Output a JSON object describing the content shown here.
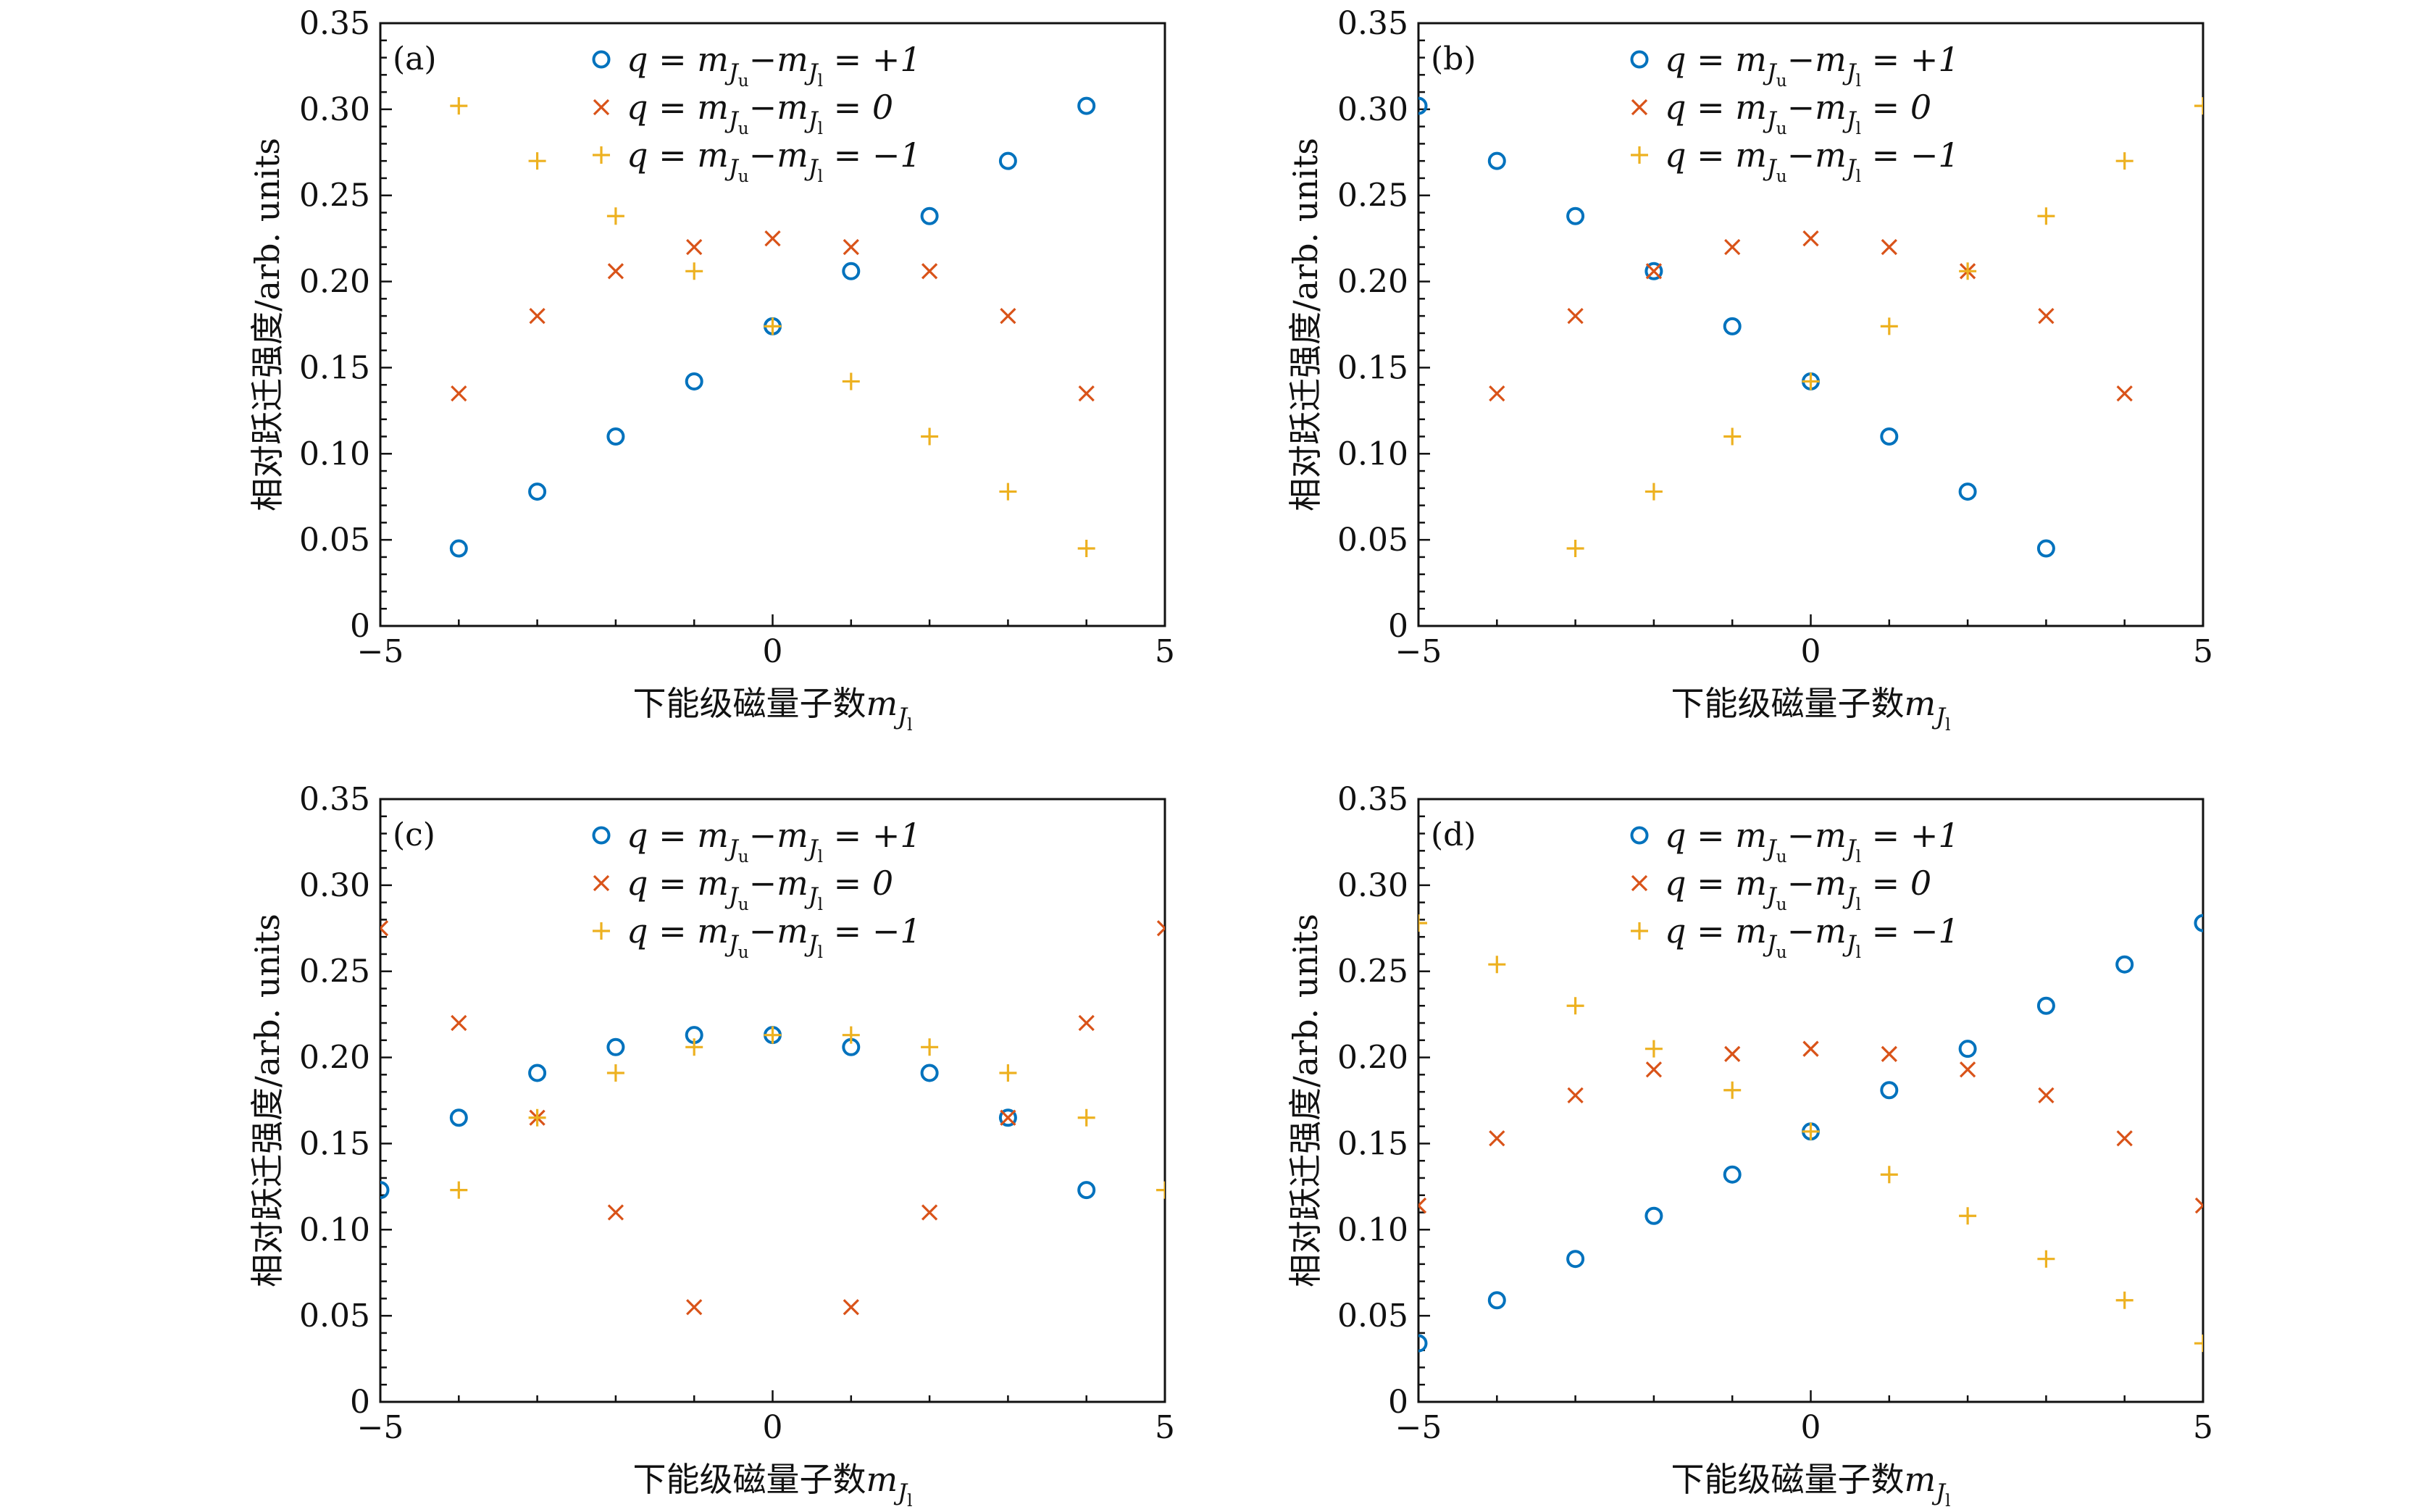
{
  "colors": {
    "plus1": "#0072BD",
    "zero": "#D95319",
    "minus1": "#EDB120",
    "axis": "#111111"
  },
  "axes": {
    "xlabel": "下能级磁量子数m_{J_l}",
    "ylabel": "相对跃迁强度/arb. units",
    "x_ticks": [
      "−5",
      "0",
      "5"
    ],
    "y_ticks": [
      "0",
      "0.05",
      "0.10",
      "0.15",
      "0.20",
      "0.25",
      "0.30",
      "0.35"
    ]
  },
  "legend": {
    "entries": [
      {
        "series": "q=+1",
        "marker": "circle",
        "text": "q = m_{J_u}−m_{J_l} = +1"
      },
      {
        "series": "q=0",
        "marker": "cross",
        "text": "q = m_{J_u}−m_{J_l} = 0"
      },
      {
        "series": "q=−1",
        "marker": "plus",
        "text": "q = m_{J_u}−m_{J_l} = −1"
      }
    ]
  },
  "chart_data": [
    {
      "type": "scatter",
      "panel_label": "(a)",
      "xlim": [
        -5,
        5
      ],
      "ylim": [
        0,
        0.35
      ],
      "xlabel": "下能级磁量子数m_{J_l}",
      "ylabel": "相对跃迁强度/arb. units",
      "series": [
        {
          "name": "q=+1",
          "marker": "circle",
          "x": [
            -4,
            -3,
            -2,
            -1,
            0,
            1,
            2,
            3,
            4
          ],
          "y": [
            0.045,
            0.078,
            0.11,
            0.142,
            0.174,
            0.206,
            0.238,
            0.27,
            0.302
          ]
        },
        {
          "name": "q=0",
          "marker": "cross",
          "x": [
            -4,
            -3,
            -2,
            -1,
            0,
            1,
            2,
            3,
            4
          ],
          "y": [
            0.135,
            0.18,
            0.206,
            0.22,
            0.225,
            0.22,
            0.206,
            0.18,
            0.135
          ]
        },
        {
          "name": "q=−1",
          "marker": "plus",
          "x": [
            -4,
            -3,
            -2,
            -1,
            0,
            1,
            2,
            3,
            4
          ],
          "y": [
            0.302,
            0.27,
            0.238,
            0.206,
            0.174,
            0.142,
            0.11,
            0.078,
            0.045
          ]
        }
      ]
    },
    {
      "type": "scatter",
      "panel_label": "(b)",
      "xlim": [
        -5,
        5
      ],
      "ylim": [
        0,
        0.35
      ],
      "xlabel": "下能级磁量子数m_{J_l}",
      "ylabel": "相对跃迁强度/arb. units",
      "series": [
        {
          "name": "q=+1",
          "marker": "circle",
          "x": [
            -5,
            -4,
            -3,
            -2,
            -1,
            0,
            1,
            2,
            3
          ],
          "y": [
            0.302,
            0.27,
            0.238,
            0.206,
            0.174,
            0.142,
            0.11,
            0.078,
            0.045
          ]
        },
        {
          "name": "q=0",
          "marker": "cross",
          "x": [
            -4,
            -3,
            -2,
            -1,
            0,
            1,
            2,
            3,
            4
          ],
          "y": [
            0.135,
            0.18,
            0.206,
            0.22,
            0.225,
            0.22,
            0.206,
            0.18,
            0.135
          ]
        },
        {
          "name": "q=−1",
          "marker": "plus",
          "x": [
            -3,
            -2,
            -1,
            0,
            1,
            2,
            3,
            4,
            5
          ],
          "y": [
            0.045,
            0.078,
            0.11,
            0.142,
            0.174,
            0.206,
            0.238,
            0.27,
            0.302
          ]
        }
      ]
    },
    {
      "type": "scatter",
      "panel_label": "(c)",
      "xlim": [
        -5,
        5
      ],
      "ylim": [
        0,
        0.35
      ],
      "xlabel": "下能级磁量子数m_{J_l}",
      "ylabel": "相对跃迁强度/arb. units",
      "series": [
        {
          "name": "q=+1",
          "marker": "circle",
          "x": [
            -5,
            -4,
            -3,
            -2,
            -1,
            0,
            1,
            2,
            3,
            4
          ],
          "y": [
            0.123,
            0.165,
            0.191,
            0.206,
            0.213,
            0.213,
            0.206,
            0.191,
            0.165,
            0.123
          ]
        },
        {
          "name": "q=0",
          "marker": "cross",
          "x": [
            -5,
            -4,
            -3,
            -2,
            -1,
            1,
            2,
            3,
            4,
            5
          ],
          "y": [
            0.275,
            0.22,
            0.165,
            0.11,
            0.055,
            0.055,
            0.11,
            0.165,
            0.22,
            0.275
          ]
        },
        {
          "name": "q=−1",
          "marker": "plus",
          "x": [
            -4,
            -3,
            -2,
            -1,
            0,
            1,
            2,
            3,
            4,
            5
          ],
          "y": [
            0.123,
            0.165,
            0.191,
            0.206,
            0.213,
            0.213,
            0.206,
            0.191,
            0.165,
            0.123
          ]
        }
      ]
    },
    {
      "type": "scatter",
      "panel_label": "(d)",
      "xlim": [
        -5,
        5
      ],
      "ylim": [
        0,
        0.35
      ],
      "xlabel": "下能级磁量子数m_{J_l}",
      "ylabel": "相对跃迁强度/arb. units",
      "series": [
        {
          "name": "q=+1",
          "marker": "circle",
          "x": [
            -5,
            -4,
            -3,
            -2,
            -1,
            0,
            1,
            2,
            3,
            4,
            5
          ],
          "y": [
            0.034,
            0.059,
            0.083,
            0.108,
            0.132,
            0.157,
            0.181,
            0.205,
            0.23,
            0.254,
            0.278
          ]
        },
        {
          "name": "q=0",
          "marker": "cross",
          "x": [
            -5,
            -4,
            -3,
            -2,
            -1,
            0,
            1,
            2,
            3,
            4,
            5
          ],
          "y": [
            0.114,
            0.153,
            0.178,
            0.193,
            0.202,
            0.205,
            0.202,
            0.193,
            0.178,
            0.153,
            0.114
          ]
        },
        {
          "name": "q=−1",
          "marker": "plus",
          "x": [
            -5,
            -4,
            -3,
            -2,
            -1,
            0,
            1,
            2,
            3,
            4,
            5
          ],
          "y": [
            0.278,
            0.254,
            0.23,
            0.205,
            0.181,
            0.157,
            0.132,
            0.108,
            0.083,
            0.059,
            0.034
          ]
        }
      ]
    }
  ]
}
